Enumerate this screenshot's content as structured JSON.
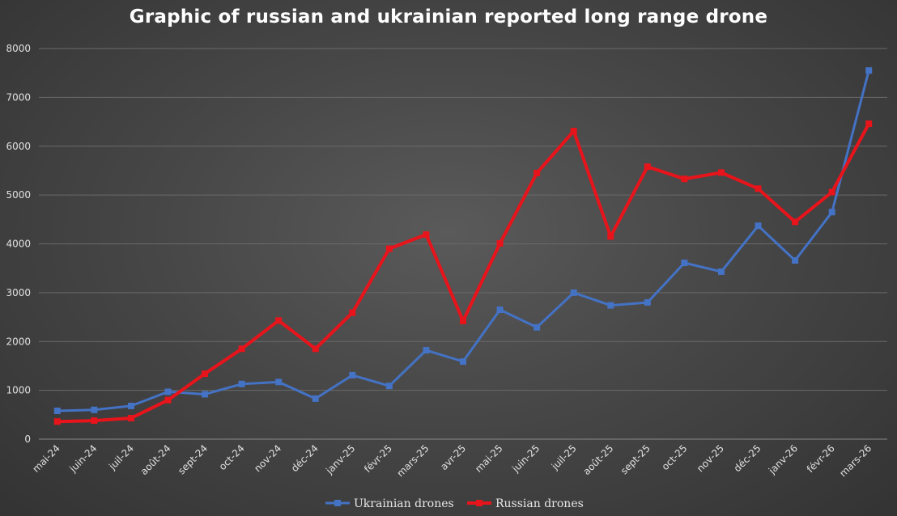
{
  "chart_data": {
    "type": "line",
    "title": "Graphic of russian and ukrainian reported long range drone",
    "xlabel": "",
    "ylabel": "",
    "categories": [
      "mai-24",
      "juin-24",
      "juil-24",
      "août-24",
      "sept-24",
      "oct-24",
      "nov-24",
      "déc-24",
      "janv-25",
      "févr-25",
      "mars-25",
      "avr-25",
      "mai-25",
      "juin-25",
      "juil-25",
      "août-25",
      "sept-25",
      "oct-25",
      "nov-25",
      "déc-25",
      "janv-26",
      "févr-26",
      "mars-26"
    ],
    "ylim": [
      0,
      8000
    ],
    "yticks": [
      0,
      1000,
      2000,
      3000,
      4000,
      5000,
      6000,
      7000,
      8000
    ],
    "grid": true,
    "legend_position": "bottom",
    "series": [
      {
        "name": "Ukrainian drones",
        "color": "#4472c4",
        "values": [
          580,
          600,
          680,
          970,
          920,
          1130,
          1170,
          830,
          1310,
          1090,
          1820,
          1590,
          2650,
          2290,
          3000,
          2740,
          2800,
          3610,
          3430,
          4370,
          3660,
          4650,
          7550
        ]
      },
      {
        "name": "Russian drones",
        "color": "#e8141b",
        "values": [
          360,
          380,
          430,
          800,
          1340,
          1850,
          2430,
          1850,
          2590,
          3900,
          4190,
          2420,
          4010,
          5450,
          6310,
          4150,
          5580,
          5330,
          5460,
          5130,
          4450,
          5060,
          6460
        ]
      }
    ]
  }
}
